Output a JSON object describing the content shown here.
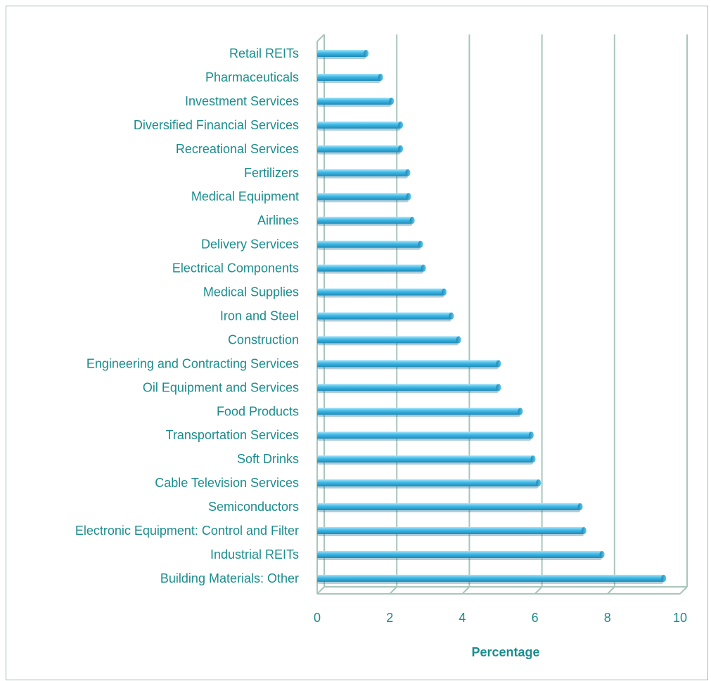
{
  "chart_data": {
    "type": "bar",
    "orientation": "horizontal",
    "categories": [
      "Retail REITs",
      "Pharmaceuticals",
      "Investment Services",
      "Diversified Financial Services",
      "Recreational Services",
      "Fertilizers",
      "Medical Equipment",
      "Airlines",
      "Delivery Services",
      "Electrical Components",
      "Medical Supplies",
      "Iron and Steel",
      "Construction",
      "Engineering and Contracting Services",
      "Oil Equipment and Services",
      "Food Products",
      "Transportation Services",
      "Soft Drinks",
      "Cable Television Services",
      "Semiconductors",
      "Electronic Equipment: Control and Filter",
      "Industrial REITs",
      "Building Materials: Other"
    ],
    "values": [
      1.35,
      1.75,
      2.05,
      2.3,
      2.3,
      2.5,
      2.52,
      2.62,
      2.85,
      2.93,
      3.5,
      3.7,
      3.9,
      5.0,
      5.0,
      5.6,
      5.9,
      5.95,
      6.1,
      7.25,
      7.35,
      7.85,
      9.55
    ],
    "xlabel": "Percentage",
    "ylabel": "",
    "xlim": [
      0,
      10
    ],
    "xticks": [
      "0",
      "2",
      "4",
      "6",
      "8",
      "10"
    ],
    "grid": true,
    "legend": "none",
    "colors": {
      "bar": "#3db8e6",
      "bar_top": "#9ee0f8",
      "bar_shadow": "#1f86b0",
      "text": "#1a8c8c",
      "grid": "#a8c6bb",
      "frame": "#9fb8ad"
    }
  }
}
